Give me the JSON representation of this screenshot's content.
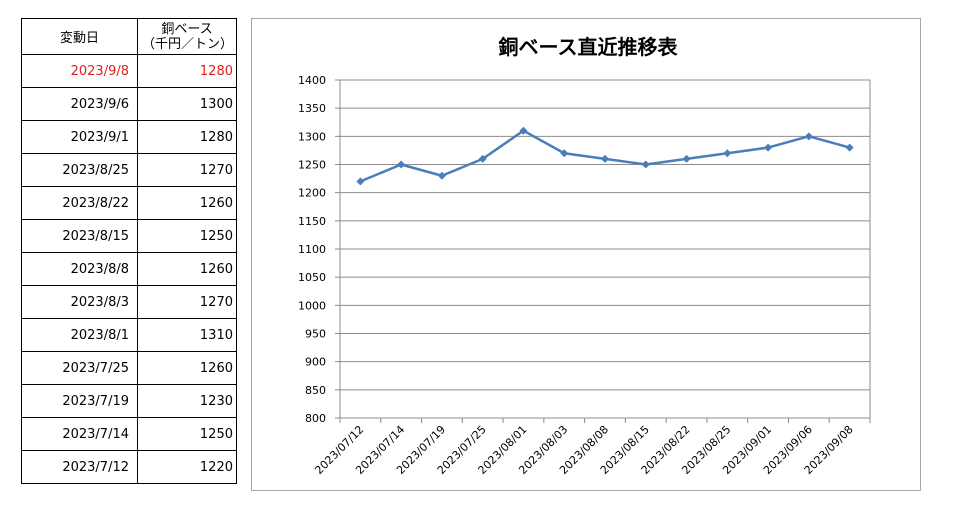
{
  "table": {
    "header_date": "変動日",
    "header_value_line1": "銅ベース",
    "header_value_line2": "（千円／トン）",
    "latest_color": "#e02020",
    "rows": [
      {
        "date": "2023/9/8",
        "value": "1280"
      },
      {
        "date": "2023/9/6",
        "value": "1300"
      },
      {
        "date": "2023/9/1",
        "value": "1280"
      },
      {
        "date": "2023/8/25",
        "value": "1270"
      },
      {
        "date": "2023/8/22",
        "value": "1260"
      },
      {
        "date": "2023/8/15",
        "value": "1250"
      },
      {
        "date": "2023/8/8",
        "value": "1260"
      },
      {
        "date": "2023/8/3",
        "value": "1270"
      },
      {
        "date": "2023/8/1",
        "value": "1310"
      },
      {
        "date": "2023/7/25",
        "value": "1260"
      },
      {
        "date": "2023/7/19",
        "value": "1230"
      },
      {
        "date": "2023/7/14",
        "value": "1250"
      },
      {
        "date": "2023/7/12",
        "value": "1220"
      }
    ]
  },
  "chart_data": {
    "type": "line",
    "title": "銅ベース直近推移表",
    "xlabel": "",
    "ylabel": "",
    "categories": [
      "2023/07/12",
      "2023/07/14",
      "2023/07/19",
      "2023/07/25",
      "2023/08/01",
      "2023/08/03",
      "2023/08/08",
      "2023/08/15",
      "2023/08/22",
      "2023/08/25",
      "2023/09/01",
      "2023/09/06",
      "2023/09/08"
    ],
    "series": [
      {
        "values": [
          1220,
          1250,
          1230,
          1260,
          1310,
          1270,
          1260,
          1250,
          1260,
          1270,
          1280,
          1300,
          1280
        ]
      }
    ],
    "ylim": [
      800,
      1400
    ],
    "ytick_step": 50,
    "grid": true,
    "legend": "none",
    "line_color": "#4a7ebb",
    "grid_color": "#8c8c8c"
  }
}
